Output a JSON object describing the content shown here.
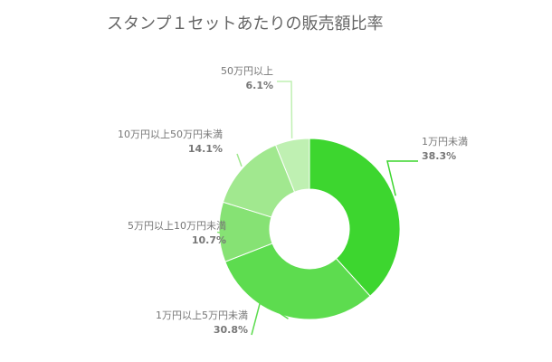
{
  "chart_data": {
    "type": "pie",
    "title": "スタンプ１セットあたりの販売額比率",
    "categories": [
      "1万円未満",
      "1万円以上5万円未満",
      "5万円以上10万円未満",
      "10万円以上50万円未満",
      "50万円以上"
    ],
    "values": [
      38.3,
      30.8,
      10.7,
      14.1,
      6.1
    ],
    "value_labels": [
      "38.3%",
      "30.8%",
      "10.7%",
      "14.1%",
      "6.1%"
    ],
    "colors": [
      "#3dd62f",
      "#5ddc4f",
      "#86e274",
      "#a1e88f",
      "#bff0b2"
    ],
    "style": "donut",
    "legend": "none"
  }
}
